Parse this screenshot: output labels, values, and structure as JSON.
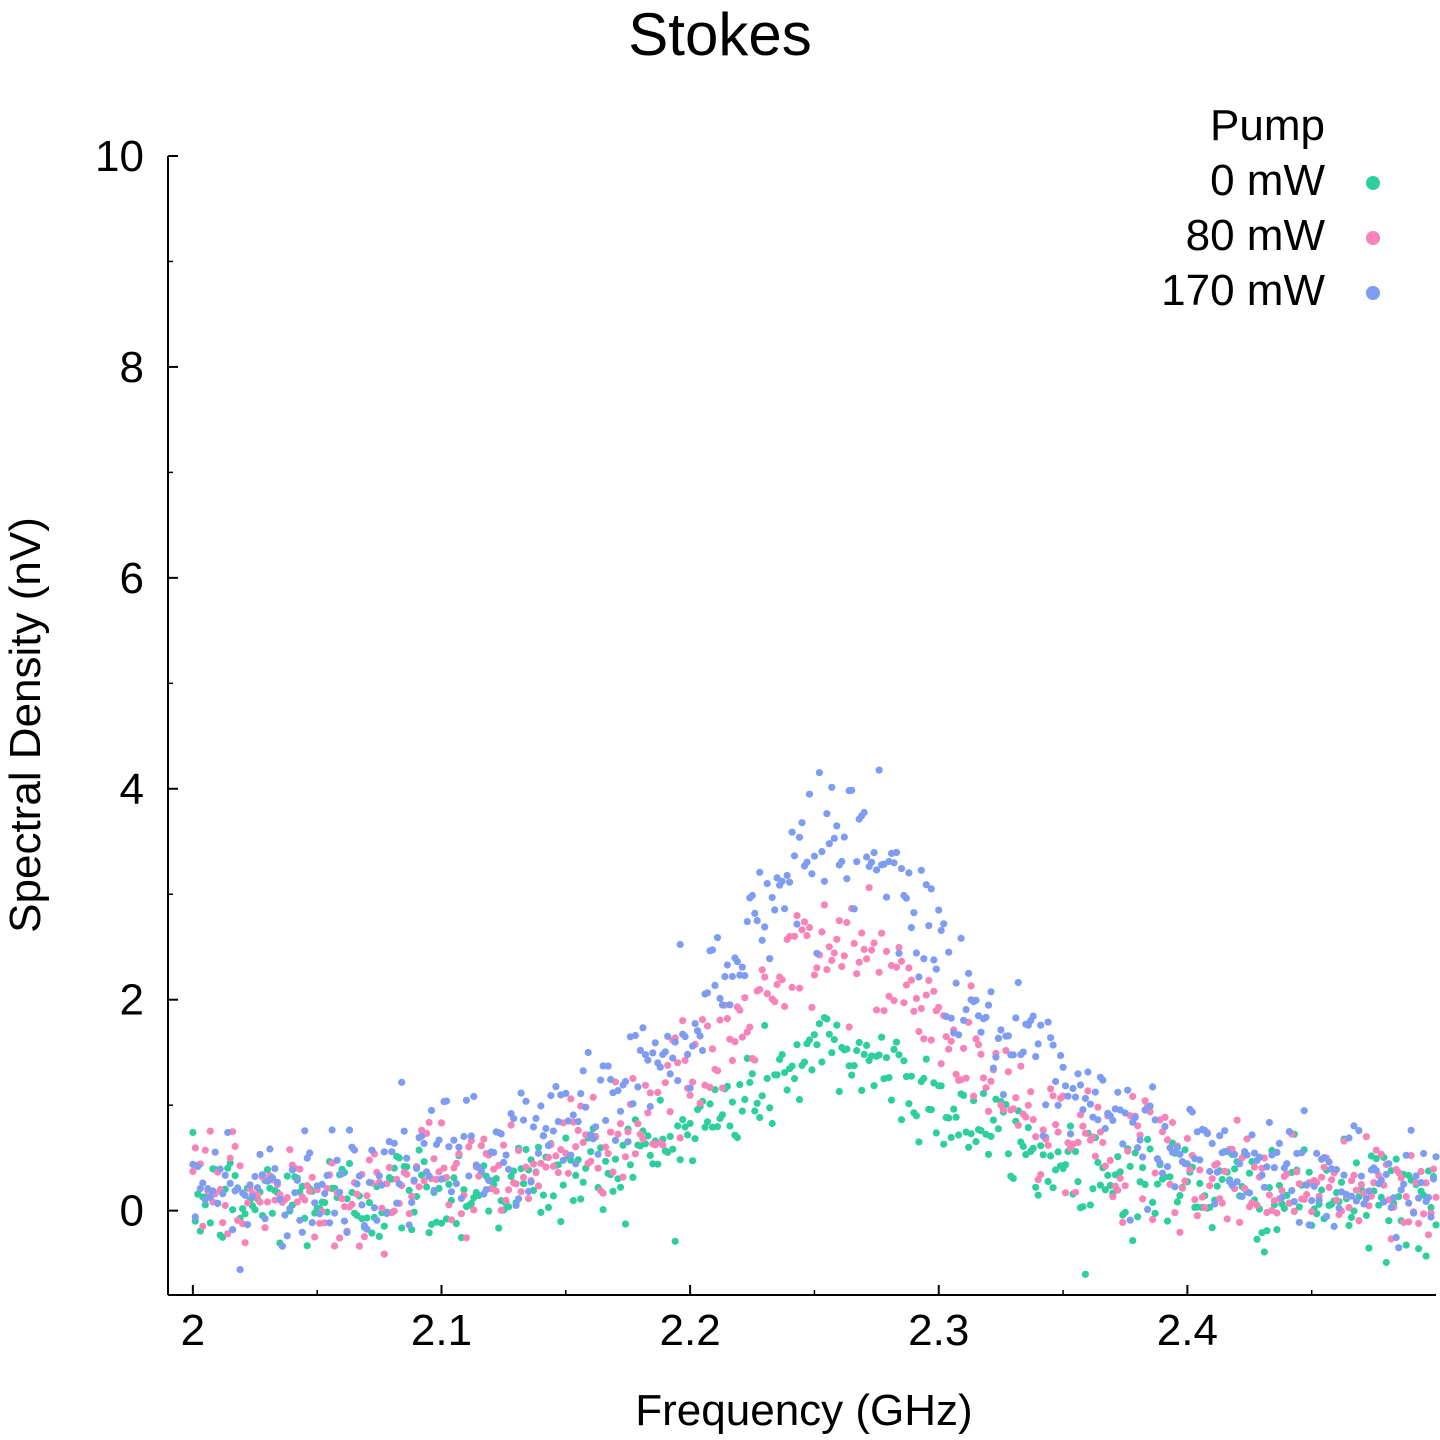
{
  "chart_data": {
    "type": "scatter",
    "title": "Stokes",
    "xlabel": "Frequency (GHz)",
    "ylabel": "Spectral Density (nV)",
    "xlim": [
      1.99,
      2.5
    ],
    "ylim": [
      -0.8,
      10
    ],
    "x_ticks": [
      "2",
      "2.1",
      "2.2",
      "2.3",
      "2.4"
    ],
    "x_tick_values": [
      2.0,
      2.1,
      2.2,
      2.3,
      2.4
    ],
    "y_ticks": [
      "0",
      "2",
      "4",
      "6",
      "8",
      "10"
    ],
    "y_tick_values": [
      0,
      2,
      4,
      6,
      8,
      10
    ],
    "grid": false,
    "legend_title": "Pump",
    "legend_position": "top-right",
    "series": [
      {
        "name": "0 mW",
        "color": "#2ecf9f",
        "amplitude": 1.5,
        "noise": 0.24
      },
      {
        "name": "80 mW",
        "color": "#f783b9",
        "amplitude": 2.5,
        "noise": 0.26
      },
      {
        "name": "170 mW",
        "color": "#7d9cf2",
        "amplitude": 3.6,
        "noise": 0.28
      }
    ],
    "lineshape": {
      "model": "lorentzian",
      "center": 2.26,
      "fwhm": 0.12,
      "baseline": 0.0
    },
    "sample_step": 0.001
  }
}
